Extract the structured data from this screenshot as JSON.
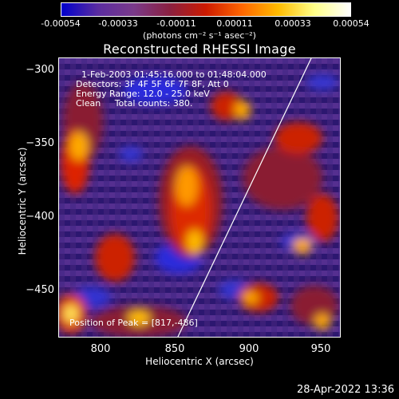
{
  "colorbar": {
    "ticks": [
      "-0.00054",
      "-0.00033",
      "-0.00011",
      "0.00011",
      "0.00033",
      "0.00054"
    ],
    "units": "(photons cm⁻² s⁻¹ asec⁻²)",
    "gradient": [
      "#0000cc",
      "#5a2ca0",
      "#7a3a8a",
      "#8a2040",
      "#cc1a00",
      "#ff6600",
      "#ffbb00",
      "#ffff88",
      "#ffffff"
    ]
  },
  "title": "Reconstructed RHESSI Image",
  "info": {
    "time": "1-Feb-2003 01:45:16.000 to 01:48:04.000",
    "detectors": "Detectors: 3F 4F 5F 6F 7F 8F, Att 0",
    "energy": "Energy Range: 12.0 - 25.0 keV",
    "clean": "Clean     Total counts: 380.",
    "peak": "Position of Peak = [817,-486]"
  },
  "axes": {
    "xlabel": "Heliocentric X (arcsec)",
    "ylabel": "Heliocentric Y (arcsec)",
    "xticks": [
      "800",
      "850",
      "900",
      "950"
    ],
    "yticks": [
      "−300",
      "−350",
      "−400",
      "−450"
    ]
  },
  "datestamp": "28-Apr-2022 13:36"
}
